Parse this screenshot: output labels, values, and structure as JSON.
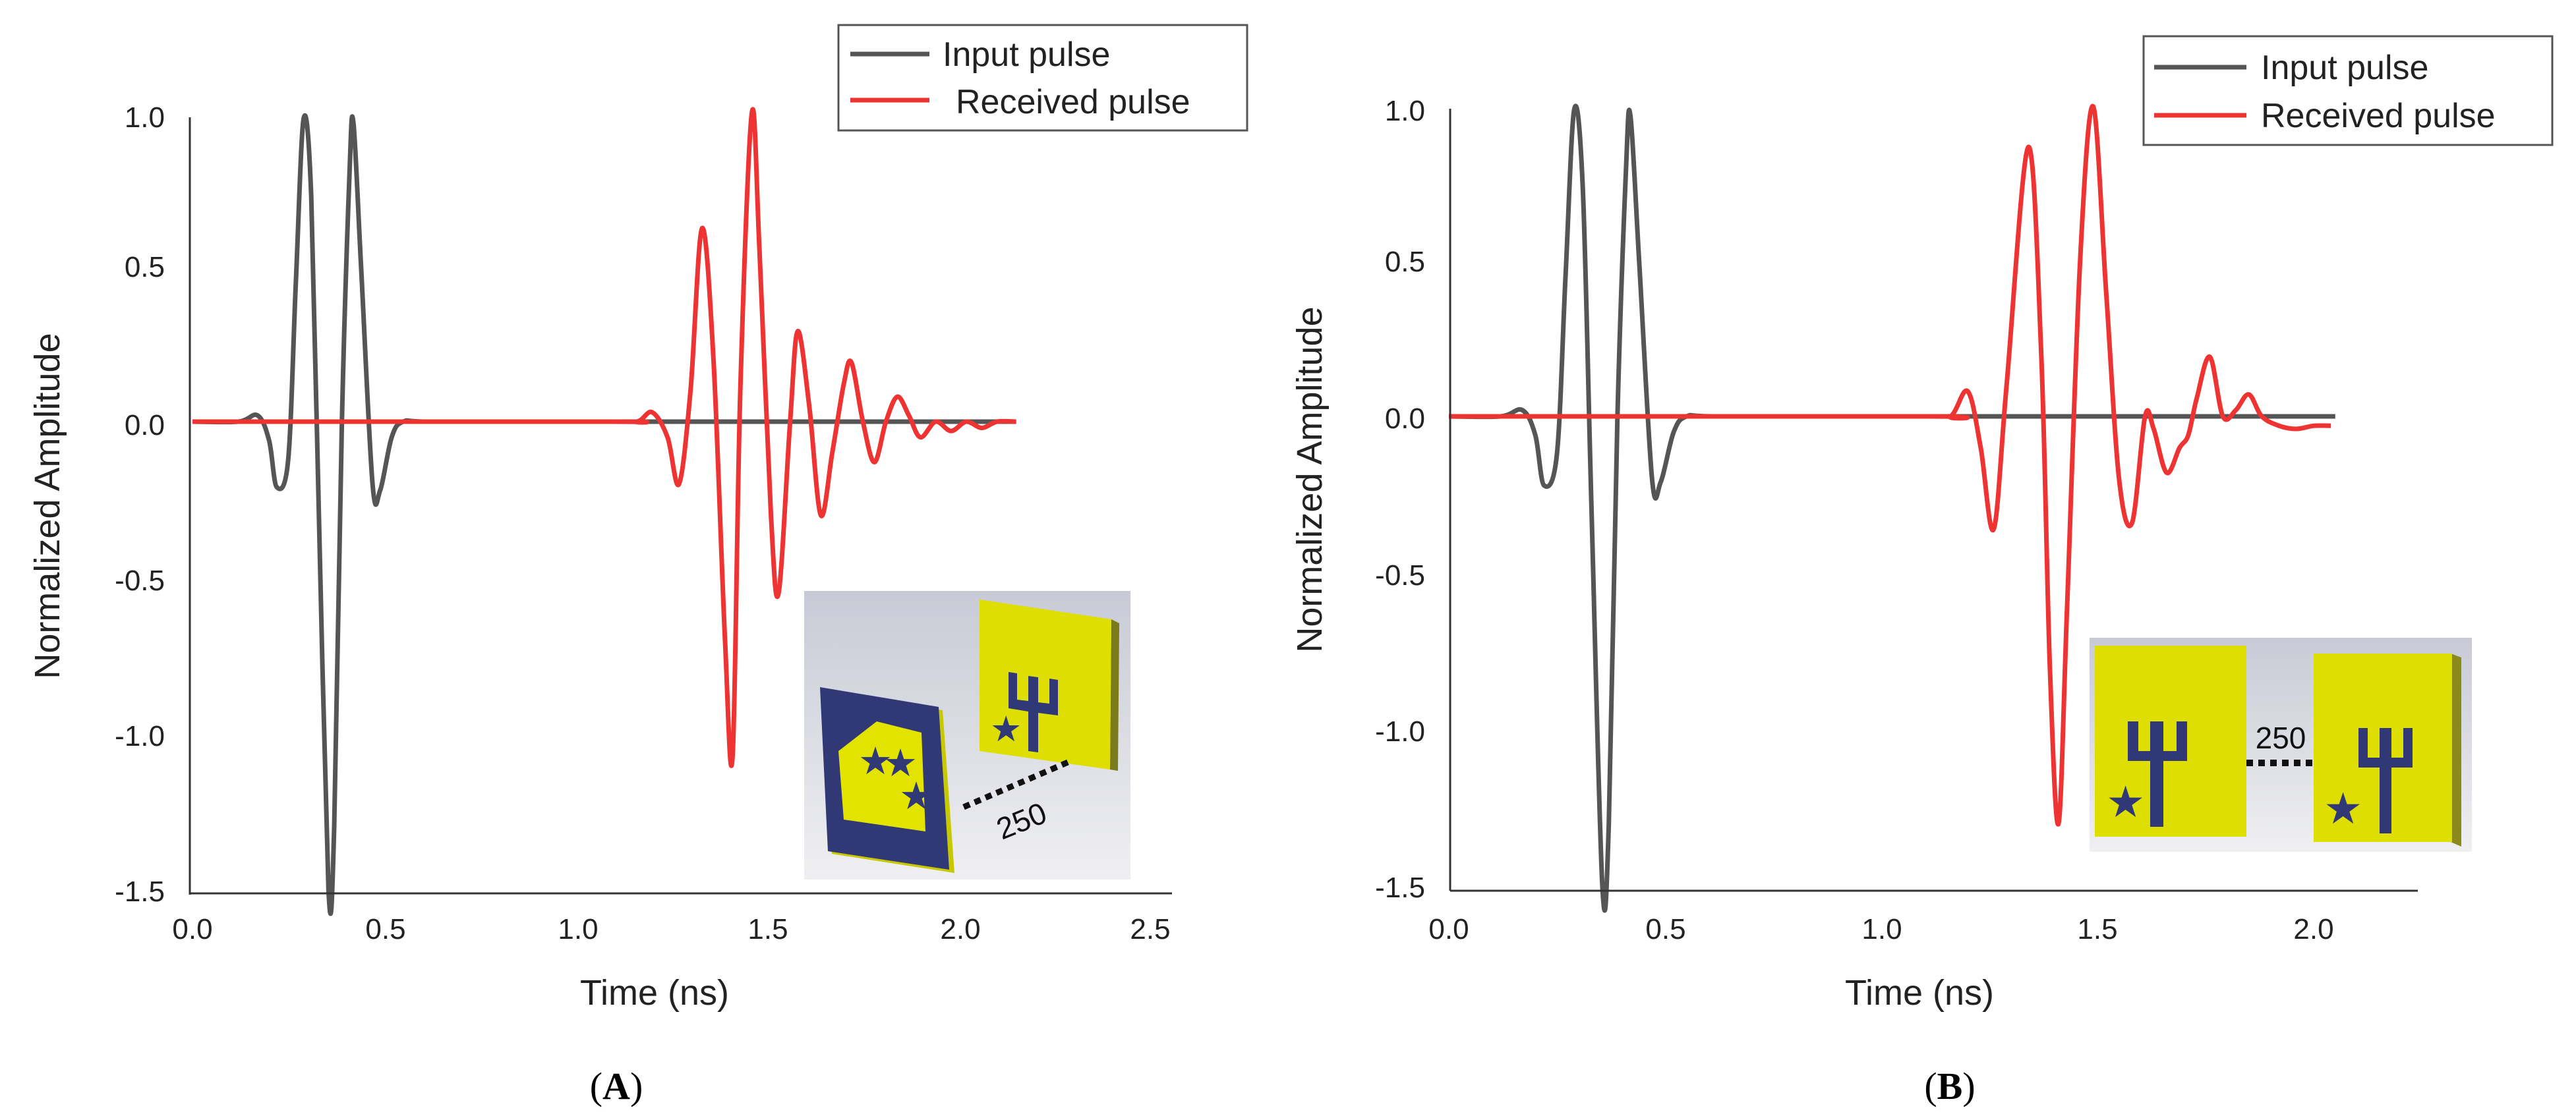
{
  "chart_data": [
    {
      "type": "line",
      "panel_label": "A",
      "xlabel": "Time (ns)",
      "ylabel": "Normalized Amplitude",
      "xlim": [
        0,
        2.5
      ],
      "ylim": [
        -1.5,
        1.0
      ],
      "x_ticks": [
        "0.0",
        "0.5",
        "1.0",
        "1.5",
        "2.0",
        "2.5"
      ],
      "y_ticks": [
        "1.0",
        "0.5",
        "0.0",
        "-0.5",
        "-1.0",
        "-1.5"
      ],
      "legend_position": "top-right",
      "grid": false,
      "inset_label": "250",
      "series": [
        {
          "name": "Input pulse",
          "color": "#555555",
          "points": [
            [
              0,
              0
            ],
            [
              0.12,
              0
            ],
            [
              0.17,
              0.02
            ],
            [
              0.2,
              -0.06
            ],
            [
              0.22,
              -0.21
            ],
            [
              0.25,
              -0.12
            ],
            [
              0.27,
              0.45
            ],
            [
              0.29,
              0.97
            ],
            [
              0.31,
              0.72
            ],
            [
              0.33,
              -0.3
            ],
            [
              0.355,
              -1.5
            ],
            [
              0.37,
              -1.3
            ],
            [
              0.39,
              0.0
            ],
            [
              0.41,
              0.8
            ],
            [
              0.42,
              0.96
            ],
            [
              0.44,
              0.5
            ],
            [
              0.47,
              -0.2
            ],
            [
              0.49,
              -0.22
            ],
            [
              0.52,
              -0.05
            ],
            [
              0.55,
              0.0
            ],
            [
              0.62,
              0
            ],
            [
              1.0,
              0
            ],
            [
              2.15,
              0
            ]
          ]
        },
        {
          "name": "Received pulse",
          "color": "#ee3333",
          "points": [
            [
              0,
              0
            ],
            [
              1.08,
              0
            ],
            [
              1.16,
              0.0
            ],
            [
              1.2,
              0.03
            ],
            [
              1.24,
              -0.05
            ],
            [
              1.27,
              -0.2
            ],
            [
              1.3,
              0.1
            ],
            [
              1.33,
              0.62
            ],
            [
              1.36,
              0.2
            ],
            [
              1.39,
              -0.7
            ],
            [
              1.41,
              -1.07
            ],
            [
              1.43,
              0.1
            ],
            [
              1.46,
              0.99
            ],
            [
              1.48,
              0.55
            ],
            [
              1.51,
              -0.3
            ],
            [
              1.53,
              -0.55
            ],
            [
              1.56,
              0.0
            ],
            [
              1.58,
              0.29
            ],
            [
              1.61,
              0.05
            ],
            [
              1.64,
              -0.3
            ],
            [
              1.67,
              -0.1
            ],
            [
              1.7,
              0.12
            ],
            [
              1.72,
              0.19
            ],
            [
              1.75,
              0.0
            ],
            [
              1.78,
              -0.13
            ],
            [
              1.81,
              0.0
            ],
            [
              1.84,
              0.08
            ],
            [
              1.87,
              0.02
            ],
            [
              1.9,
              -0.05
            ],
            [
              1.94,
              0.0
            ],
            [
              1.98,
              -0.03
            ],
            [
              2.02,
              0.0
            ],
            [
              2.06,
              -0.02
            ],
            [
              2.1,
              0.0
            ],
            [
              2.15,
              0.0
            ]
          ]
        }
      ]
    },
    {
      "type": "line",
      "panel_label": "B",
      "xlabel": "Time (ns)",
      "ylabel": "Normalized Amplitude",
      "xlim": [
        0,
        2.25
      ],
      "ylim": [
        -1.5,
        1.0
      ],
      "x_ticks": [
        "0.0",
        "0.5",
        "1.0",
        "1.5",
        "2.0"
      ],
      "y_ticks": [
        "1.0",
        "0.5",
        "0.0",
        "-0.5",
        "-1.0",
        "-1.5"
      ],
      "legend_position": "top-right",
      "grid": false,
      "inset_label": "250",
      "series": [
        {
          "name": "Input pulse",
          "color": "#555555",
          "points": [
            [
              0,
              0
            ],
            [
              0.12,
              0
            ],
            [
              0.17,
              0.02
            ],
            [
              0.2,
              -0.06
            ],
            [
              0.22,
              -0.22
            ],
            [
              0.25,
              -0.12
            ],
            [
              0.27,
              0.45
            ],
            [
              0.29,
              0.98
            ],
            [
              0.31,
              0.72
            ],
            [
              0.33,
              -0.3
            ],
            [
              0.355,
              -1.5
            ],
            [
              0.37,
              -1.3
            ],
            [
              0.39,
              0.0
            ],
            [
              0.41,
              0.8
            ],
            [
              0.42,
              0.96
            ],
            [
              0.44,
              0.5
            ],
            [
              0.47,
              -0.2
            ],
            [
              0.49,
              -0.21
            ],
            [
              0.52,
              -0.05
            ],
            [
              0.55,
              0.0
            ],
            [
              0.62,
              0
            ],
            [
              1.0,
              0
            ],
            [
              2.05,
              0
            ]
          ]
        },
        {
          "name": "Received pulse",
          "color": "#ee3333",
          "points": [
            [
              0,
              0
            ],
            [
              1.1,
              0
            ],
            [
              1.16,
              0.0
            ],
            [
              1.2,
              0.08
            ],
            [
              1.23,
              -0.1
            ],
            [
              1.26,
              -0.36
            ],
            [
              1.29,
              0.1
            ],
            [
              1.34,
              0.86
            ],
            [
              1.37,
              0.2
            ],
            [
              1.39,
              -0.8
            ],
            [
              1.41,
              -1.3
            ],
            [
              1.43,
              -0.6
            ],
            [
              1.46,
              0.5
            ],
            [
              1.49,
              0.99
            ],
            [
              1.52,
              0.4
            ],
            [
              1.55,
              -0.2
            ],
            [
              1.58,
              -0.34
            ],
            [
              1.61,
              0.0
            ],
            [
              1.63,
              -0.04
            ],
            [
              1.66,
              -0.18
            ],
            [
              1.69,
              -0.1
            ],
            [
              1.71,
              -0.06
            ],
            [
              1.73,
              0.06
            ],
            [
              1.76,
              0.19
            ],
            [
              1.79,
              0.0
            ],
            [
              1.82,
              0.02
            ],
            [
              1.85,
              0.07
            ],
            [
              1.88,
              0.0
            ],
            [
              1.92,
              -0.03
            ],
            [
              1.96,
              -0.04
            ],
            [
              2.0,
              -0.03
            ],
            [
              2.04,
              -0.03
            ]
          ]
        }
      ]
    }
  ]
}
